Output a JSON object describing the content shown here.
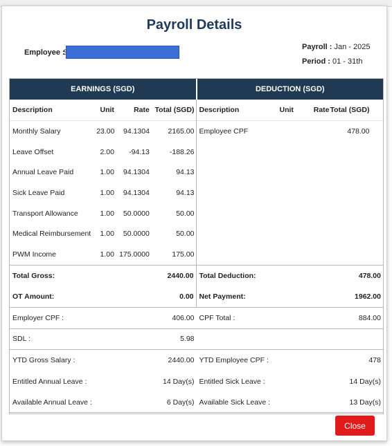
{
  "title": "Payroll Details",
  "employee": {
    "label": "Employee :",
    "value": "S"
  },
  "payroll": {
    "label": "Payroll :",
    "value": "Jan - 2025"
  },
  "period": {
    "label": "Period :",
    "value": "01 - 31th"
  },
  "earnings": {
    "header": "EARNINGS (SGD)",
    "columns": [
      "Description",
      "Unit",
      "Rate",
      "Total (SGD)"
    ],
    "rows": [
      [
        "Monthly Salary",
        "23.00",
        "94.1304",
        "2165.00"
      ],
      [
        "Leave Offset",
        "2.00",
        "-94.13",
        "-188.26"
      ],
      [
        "Annual Leave Paid",
        "1.00",
        "94.1304",
        "94.13"
      ],
      [
        "Sick Leave Paid",
        "1.00",
        "94.1304",
        "94.13"
      ],
      [
        "Transport Allowance",
        "1.00",
        "50.0000",
        "50.00"
      ],
      [
        "Medical Reimbursement",
        "1.00",
        "50.0000",
        "50.00"
      ],
      [
        "PWM Income",
        "1.00",
        "175.0000",
        "175.00"
      ]
    ],
    "total_gross_label": "Total Gross:",
    "total_gross_value": "2440.00",
    "ot_label": "OT Amount:",
    "ot_value": "0.00"
  },
  "deduction": {
    "header": "DEDUCTION (SGD)",
    "columns": [
      "Description",
      "Unit",
      "Rate",
      "Total (SGD)"
    ],
    "rows": [
      [
        "Employee CPF",
        "",
        "",
        "478.00"
      ]
    ],
    "total_label": "Total Deduction:",
    "total_value": "478.00",
    "net_label": "Net Payment:",
    "net_value": "1962.00"
  },
  "summary": {
    "employer_cpf_label": "Employer CPF :",
    "employer_cpf_value": "406.00",
    "cpf_total_label": "CPF Total :",
    "cpf_total_value": "884.00",
    "sdl_label": "SDL :",
    "sdl_value": "5.98",
    "ytd_gross_label": "YTD Gross Salary :",
    "ytd_gross_value": "2440.00",
    "ytd_cpf_label": "YTD Employee CPF :",
    "ytd_cpf_value": "478",
    "ent_annual_label": "Entitled Annual Leave :",
    "ent_annual_value": "14 Day(s)",
    "ent_sick_label": "Entitled Sick Leave :",
    "ent_sick_value": "14 Day(s)",
    "avail_annual_label": "Available Annual Leave :",
    "avail_annual_value": "6 Day(s)",
    "avail_sick_label": "Available Sick Leave :",
    "avail_sick_value": "13 Day(s)"
  },
  "close_label": "Close",
  "colors": {
    "header_band": "#1f3a52",
    "title": "#1f3a5a",
    "close": "#e11b1b",
    "redaction": "#3b6fd6"
  }
}
